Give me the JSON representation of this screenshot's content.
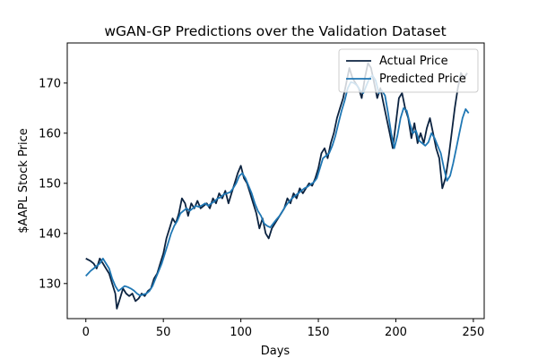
{
  "chart_data": {
    "type": "line",
    "title": "wGAN-GP Predictions over the Validation Dataset",
    "xlabel": "Days",
    "ylabel": "$AAPL Stock Price",
    "xlim": [
      -12,
      257
    ],
    "ylim": [
      123,
      178
    ],
    "xticks": [
      0,
      50,
      100,
      150,
      200,
      250
    ],
    "yticks": [
      130,
      140,
      150,
      160,
      170
    ],
    "grid": false,
    "legend_position": "top-right",
    "series": [
      {
        "name": "Actual Price",
        "color": "#0c2340",
        "points": [
          [
            0,
            135
          ],
          [
            3,
            134.5
          ],
          [
            5,
            134
          ],
          [
            7,
            133
          ],
          [
            9,
            135
          ],
          [
            11,
            134
          ],
          [
            13,
            133
          ],
          [
            15,
            132
          ],
          [
            17,
            130
          ],
          [
            19,
            128
          ],
          [
            20,
            125
          ],
          [
            22,
            127
          ],
          [
            24,
            129
          ],
          [
            26,
            128
          ],
          [
            28,
            127.5
          ],
          [
            30,
            128
          ],
          [
            32,
            126.5
          ],
          [
            34,
            127
          ],
          [
            36,
            128
          ],
          [
            38,
            127.5
          ],
          [
            40,
            128.5
          ],
          [
            42,
            129
          ],
          [
            44,
            131
          ],
          [
            46,
            132
          ],
          [
            48,
            134
          ],
          [
            50,
            136
          ],
          [
            52,
            139
          ],
          [
            54,
            141
          ],
          [
            56,
            143
          ],
          [
            58,
            142
          ],
          [
            60,
            144
          ],
          [
            62,
            147
          ],
          [
            64,
            146
          ],
          [
            66,
            143.5
          ],
          [
            68,
            146
          ],
          [
            70,
            145
          ],
          [
            72,
            146.5
          ],
          [
            74,
            145
          ],
          [
            76,
            145.5
          ],
          [
            78,
            146
          ],
          [
            80,
            145
          ],
          [
            82,
            147
          ],
          [
            84,
            146
          ],
          [
            86,
            148
          ],
          [
            88,
            147
          ],
          [
            90,
            148.5
          ],
          [
            92,
            146
          ],
          [
            94,
            148
          ],
          [
            96,
            150
          ],
          [
            98,
            152
          ],
          [
            100,
            153.5
          ],
          [
            102,
            151
          ],
          [
            104,
            150
          ],
          [
            106,
            148
          ],
          [
            108,
            146
          ],
          [
            110,
            144
          ],
          [
            112,
            141
          ],
          [
            114,
            143
          ],
          [
            116,
            140
          ],
          [
            118,
            139
          ],
          [
            120,
            141
          ],
          [
            122,
            142
          ],
          [
            124,
            143
          ],
          [
            126,
            144
          ],
          [
            128,
            145
          ],
          [
            130,
            147
          ],
          [
            132,
            146
          ],
          [
            134,
            148
          ],
          [
            136,
            147
          ],
          [
            138,
            149
          ],
          [
            140,
            148
          ],
          [
            142,
            149
          ],
          [
            144,
            150
          ],
          [
            146,
            149.5
          ],
          [
            148,
            151
          ],
          [
            150,
            153
          ],
          [
            152,
            156
          ],
          [
            154,
            157
          ],
          [
            156,
            155
          ],
          [
            158,
            158
          ],
          [
            160,
            160
          ],
          [
            162,
            163
          ],
          [
            164,
            165
          ],
          [
            166,
            167
          ],
          [
            168,
            170
          ],
          [
            170,
            173
          ],
          [
            172,
            171
          ],
          [
            174,
            170
          ],
          [
            176,
            169
          ],
          [
            178,
            167
          ],
          [
            180,
            171
          ],
          [
            182,
            174
          ],
          [
            184,
            173
          ],
          [
            186,
            170
          ],
          [
            188,
            167
          ],
          [
            190,
            169
          ],
          [
            192,
            166
          ],
          [
            194,
            163
          ],
          [
            196,
            160
          ],
          [
            198,
            157
          ],
          [
            200,
            162
          ],
          [
            202,
            167
          ],
          [
            204,
            168
          ],
          [
            206,
            165
          ],
          [
            208,
            163
          ],
          [
            210,
            159
          ],
          [
            212,
            162
          ],
          [
            214,
            158
          ],
          [
            216,
            160
          ],
          [
            218,
            158
          ],
          [
            220,
            161
          ],
          [
            222,
            163
          ],
          [
            224,
            160
          ],
          [
            226,
            157
          ],
          [
            228,
            155
          ],
          [
            230,
            149
          ],
          [
            232,
            151
          ],
          [
            234,
            155
          ],
          [
            236,
            160
          ],
          [
            238,
            165
          ],
          [
            240,
            169
          ],
          [
            242,
            172
          ],
          [
            244,
            171
          ],
          [
            246,
            172
          ]
        ]
      },
      {
        "name": "Predicted Price",
        "color": "#1f77b4",
        "points": [
          [
            0,
            131.5
          ],
          [
            3,
            132.5
          ],
          [
            5,
            133
          ],
          [
            7,
            133.5
          ],
          [
            9,
            134
          ],
          [
            11,
            135
          ],
          [
            13,
            134
          ],
          [
            15,
            133
          ],
          [
            17,
            131
          ],
          [
            19,
            129.5
          ],
          [
            21,
            128.5
          ],
          [
            23,
            129
          ],
          [
            25,
            129.5
          ],
          [
            27,
            129.3
          ],
          [
            29,
            129
          ],
          [
            31,
            128.6
          ],
          [
            33,
            128
          ],
          [
            35,
            127.6
          ],
          [
            37,
            127.8
          ],
          [
            39,
            128
          ],
          [
            41,
            128.5
          ],
          [
            43,
            129.5
          ],
          [
            45,
            131
          ],
          [
            47,
            132.5
          ],
          [
            49,
            134
          ],
          [
            51,
            136
          ],
          [
            53,
            138
          ],
          [
            55,
            140
          ],
          [
            57,
            141.5
          ],
          [
            59,
            142.5
          ],
          [
            61,
            144
          ],
          [
            63,
            144.5
          ],
          [
            65,
            145
          ],
          [
            67,
            144.5
          ],
          [
            69,
            145
          ],
          [
            71,
            145.5
          ],
          [
            73,
            145.3
          ],
          [
            75,
            145.6
          ],
          [
            77,
            146
          ],
          [
            79,
            145.5
          ],
          [
            81,
            146
          ],
          [
            83,
            146.4
          ],
          [
            85,
            147
          ],
          [
            87,
            147.2
          ],
          [
            89,
            147.8
          ],
          [
            91,
            148
          ],
          [
            93,
            148.2
          ],
          [
            95,
            149
          ],
          [
            97,
            150
          ],
          [
            99,
            151.5
          ],
          [
            101,
            152
          ],
          [
            103,
            151
          ],
          [
            105,
            149.5
          ],
          [
            107,
            148
          ],
          [
            109,
            146
          ],
          [
            111,
            144.5
          ],
          [
            113,
            143.5
          ],
          [
            115,
            142
          ],
          [
            117,
            141.5
          ],
          [
            119,
            141.2
          ],
          [
            121,
            142
          ],
          [
            123,
            142.8
          ],
          [
            125,
            143.5
          ],
          [
            127,
            144.5
          ],
          [
            129,
            145.5
          ],
          [
            131,
            146.3
          ],
          [
            133,
            147
          ],
          [
            135,
            147.5
          ],
          [
            137,
            148
          ],
          [
            139,
            148.5
          ],
          [
            141,
            149
          ],
          [
            143,
            149.3
          ],
          [
            145,
            149.8
          ],
          [
            147,
            150.2
          ],
          [
            149,
            151
          ],
          [
            151,
            153
          ],
          [
            153,
            155
          ],
          [
            155,
            155.5
          ],
          [
            157,
            156
          ],
          [
            159,
            157.5
          ],
          [
            161,
            159.5
          ],
          [
            163,
            162
          ],
          [
            165,
            164.5
          ],
          [
            167,
            166.5
          ],
          [
            169,
            169
          ],
          [
            171,
            170.2
          ],
          [
            173,
            170
          ],
          [
            175,
            169.5
          ],
          [
            177,
            168.5
          ],
          [
            179,
            168
          ],
          [
            181,
            169.5
          ],
          [
            183,
            171
          ],
          [
            185,
            171.5
          ],
          [
            187,
            170.5
          ],
          [
            189,
            168
          ],
          [
            191,
            168.5
          ],
          [
            193,
            167.5
          ],
          [
            195,
            164
          ],
          [
            197,
            160
          ],
          [
            199,
            157
          ],
          [
            201,
            159.5
          ],
          [
            203,
            163
          ],
          [
            205,
            165
          ],
          [
            207,
            164.5
          ],
          [
            209,
            162
          ],
          [
            211,
            160
          ],
          [
            213,
            160.5
          ],
          [
            215,
            158.5
          ],
          [
            217,
            158
          ],
          [
            219,
            157.5
          ],
          [
            221,
            158.2
          ],
          [
            223,
            160
          ],
          [
            225,
            159
          ],
          [
            227,
            157.5
          ],
          [
            229,
            156
          ],
          [
            231,
            153
          ],
          [
            233,
            150.5
          ],
          [
            235,
            151.5
          ],
          [
            237,
            154
          ],
          [
            239,
            157
          ],
          [
            241,
            160
          ],
          [
            243,
            163
          ],
          [
            245,
            164.8
          ],
          [
            247,
            164
          ]
        ]
      }
    ]
  }
}
